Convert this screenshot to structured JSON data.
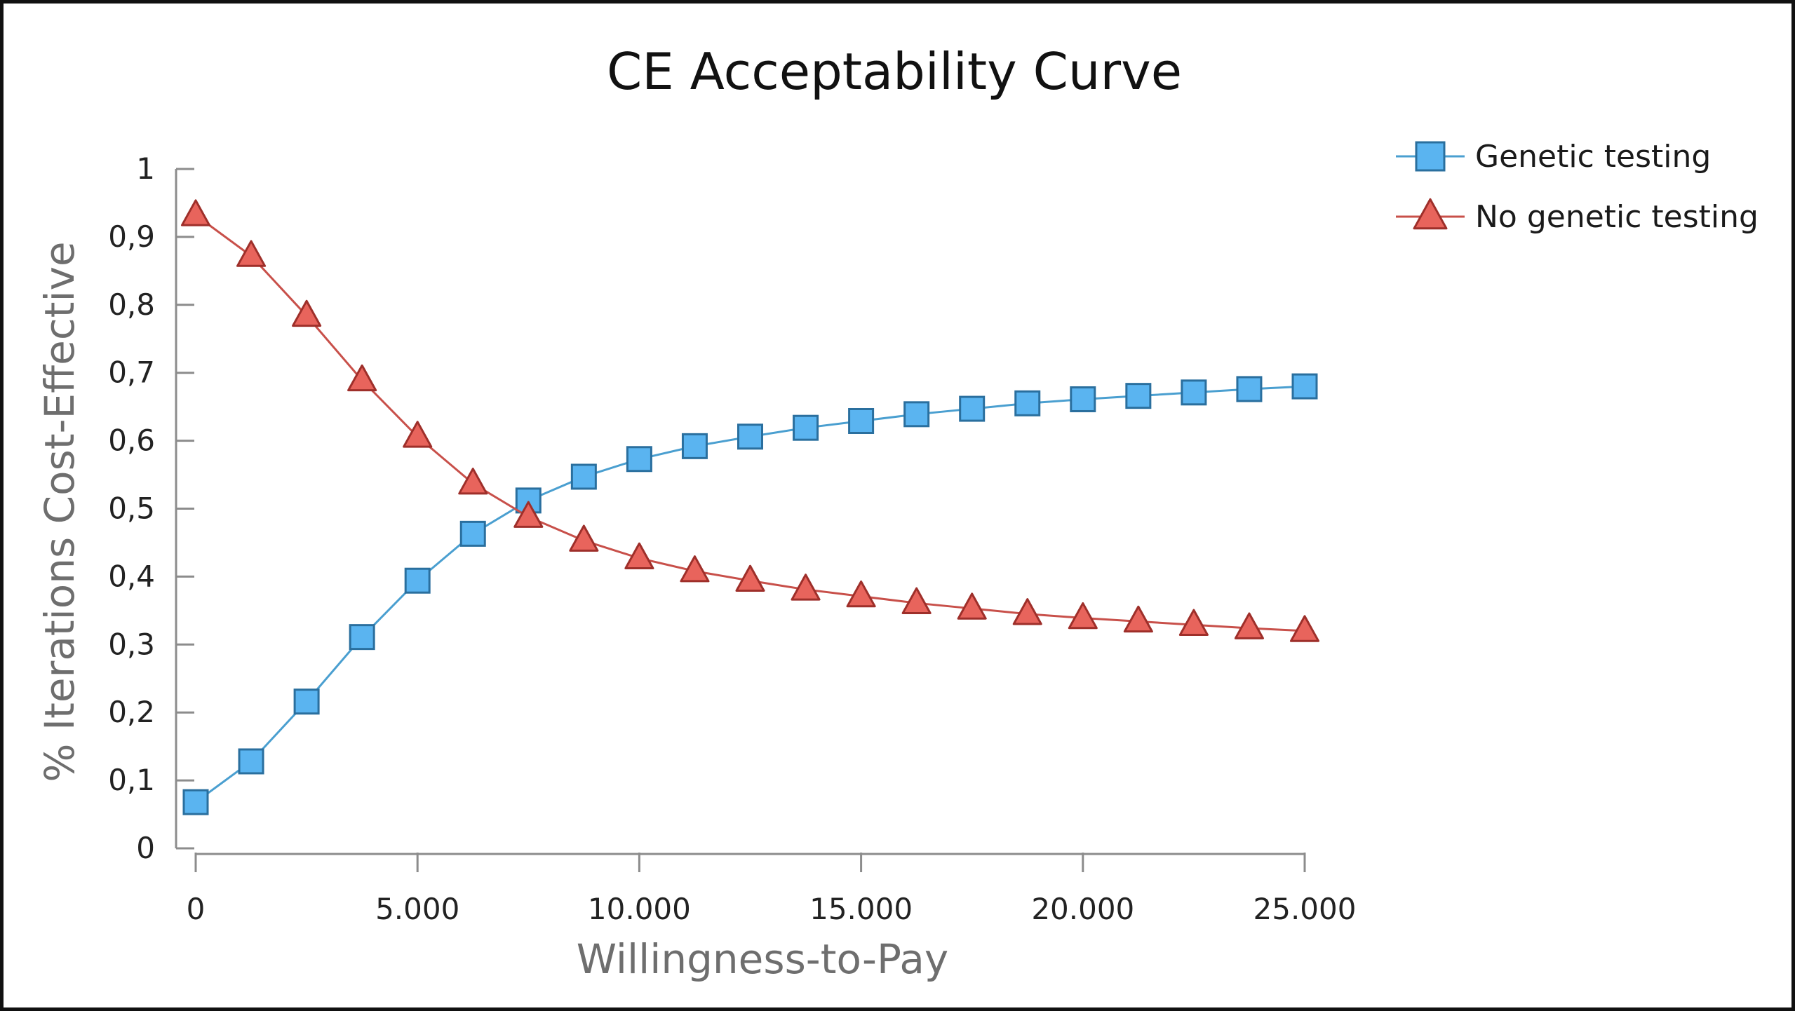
{
  "chart_data": {
    "type": "line",
    "title": "CE Acceptability Curve",
    "xlabel": "Willingness-to-Pay",
    "ylabel": "% Iterations Cost-Effective",
    "xlim": [
      0,
      25000
    ],
    "ylim": [
      0,
      1
    ],
    "x_ticks": [
      0,
      5000,
      10000,
      15000,
      20000,
      25000
    ],
    "x_tick_labels": [
      "0",
      "5.000",
      "10.000",
      "15.000",
      "20.000",
      "25.000"
    ],
    "y_ticks": [
      0,
      0.1,
      0.2,
      0.3,
      0.4,
      0.5,
      0.6,
      0.7,
      0.8,
      0.9,
      1
    ],
    "y_tick_labels": [
      "0",
      "0,1",
      "0,2",
      "0,3",
      "0,4",
      "0,5",
      "0,6",
      "0,7",
      "0,8",
      "0,9",
      "1"
    ],
    "grid": false,
    "legend_position": "top-right",
    "x": [
      0,
      1250,
      2500,
      3750,
      5000,
      6250,
      7500,
      8750,
      10000,
      11250,
      12500,
      13750,
      15000,
      16250,
      17500,
      18750,
      20000,
      21250,
      22500,
      23750,
      25000
    ],
    "series": [
      {
        "name": "Genetic testing",
        "marker": "square",
        "color": "#5ab4f0",
        "stroke": "#2a6f9e",
        "line_color": "#4a9fd0",
        "values": [
          0.068,
          0.128,
          0.216,
          0.311,
          0.394,
          0.463,
          0.512,
          0.547,
          0.573,
          0.592,
          0.606,
          0.619,
          0.629,
          0.639,
          0.647,
          0.655,
          0.661,
          0.666,
          0.671,
          0.676,
          0.68
        ]
      },
      {
        "name": "No genetic testing",
        "marker": "triangle",
        "color": "#e8645c",
        "stroke": "#9e2f2a",
        "line_color": "#c8504a",
        "values": [
          0.932,
          0.872,
          0.784,
          0.689,
          0.606,
          0.537,
          0.488,
          0.453,
          0.427,
          0.408,
          0.394,
          0.381,
          0.371,
          0.361,
          0.353,
          0.345,
          0.339,
          0.334,
          0.329,
          0.324,
          0.32
        ]
      }
    ]
  },
  "colors": {
    "axis": "#8c8c8c",
    "frame": "#111111"
  }
}
